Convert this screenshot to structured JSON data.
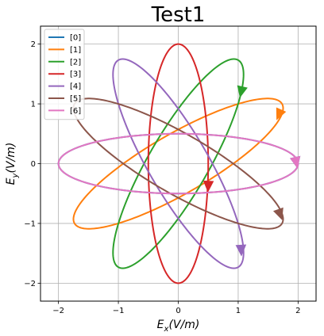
{
  "chart_data": {
    "type": "line",
    "title": "Test1",
    "xlabel_main": "E",
    "xlabel_sub": "x",
    "xlabel_unit": "(V/m)",
    "ylabel_main": "E",
    "ylabel_sub": "y",
    "ylabel_unit": "(V/m)",
    "xlim": [
      -2.3,
      2.3
    ],
    "ylim": [
      -2.3,
      2.3
    ],
    "xticks": [
      -2,
      -1,
      0,
      1,
      2
    ],
    "yticks": [
      -2,
      -1,
      0,
      1,
      2
    ],
    "grid": true,
    "legend_position": "top-left",
    "series": [
      {
        "name": "[0]",
        "color": "#1f77b4",
        "ellipse": {
          "a": 2.0,
          "b": 0.5,
          "angle_deg": 0
        },
        "arrow": [
          1.97,
          0.02
        ]
      },
      {
        "name": "[1]",
        "color": "#ff7f0e",
        "ellipse": {
          "a": 2.0,
          "b": 0.5,
          "angle_deg": 30
        },
        "arrow": [
          1.68,
          0.82
        ]
      },
      {
        "name": "[2]",
        "color": "#2ca02c",
        "ellipse": {
          "a": 2.0,
          "b": 0.5,
          "angle_deg": 60
        },
        "arrow": [
          1.05,
          1.2
        ]
      },
      {
        "name": "[3]",
        "color": "#d62728",
        "ellipse": {
          "a": 2.0,
          "b": 0.5,
          "angle_deg": 90
        },
        "arrow": [
          0.5,
          -0.38
        ]
      },
      {
        "name": "[4]",
        "color": "#9467bd",
        "ellipse": {
          "a": 2.0,
          "b": 0.5,
          "angle_deg": 120
        },
        "arrow": [
          1.05,
          -1.45
        ]
      },
      {
        "name": "[5]",
        "color": "#8c564b",
        "ellipse": {
          "a": 2.0,
          "b": 0.5,
          "angle_deg": 150
        },
        "arrow": [
          1.7,
          -0.85
        ]
      },
      {
        "name": "[6]",
        "color": "#e377c2",
        "ellipse": {
          "a": 2.0,
          "b": 0.5,
          "angle_deg": 180
        },
        "arrow": [
          1.97,
          0.02
        ]
      }
    ]
  }
}
